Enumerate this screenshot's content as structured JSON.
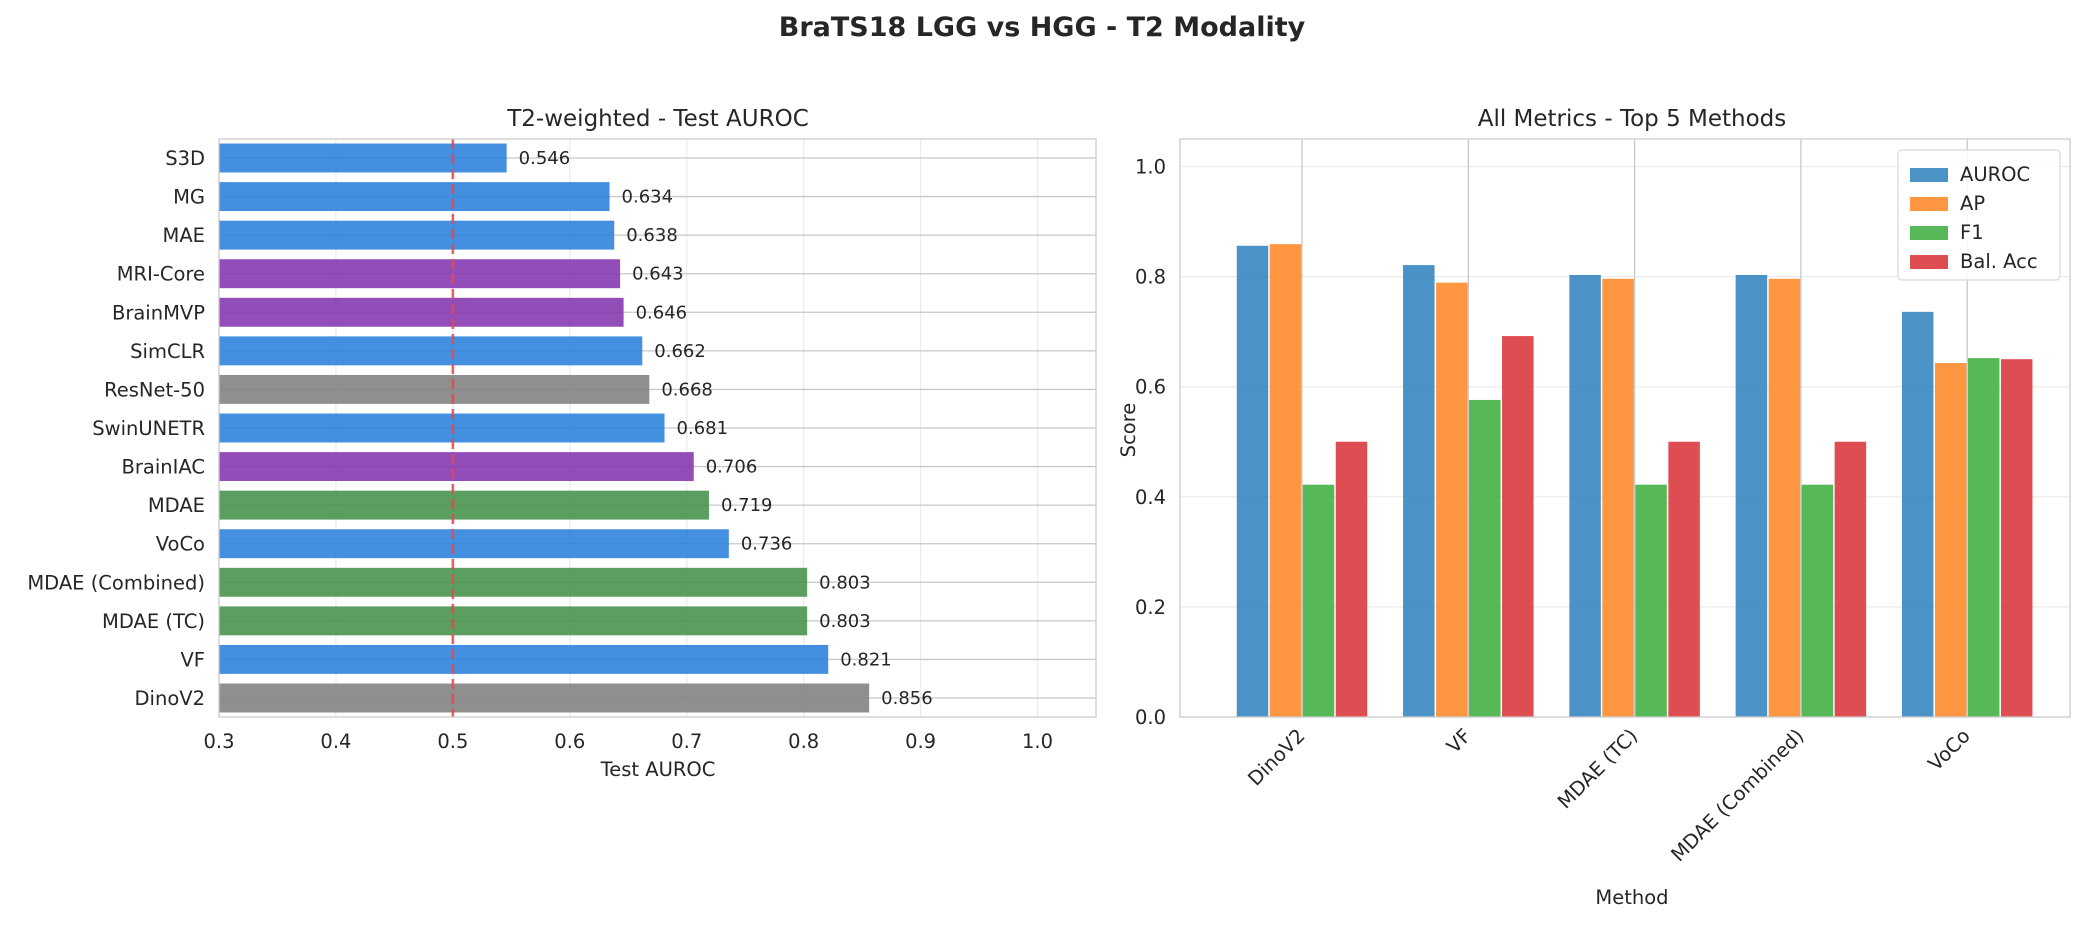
{
  "suptitle": "BraTS18 LGG vs HGG - T2 Modality",
  "chart_data": [
    {
      "type": "bar",
      "orientation": "horizontal",
      "title": "T2-weighted - Test AUROC",
      "xlabel": "Test AUROC",
      "ylabel": "",
      "xlim": [
        0.3,
        1.05
      ],
      "xticks": [
        "0.3",
        "0.4",
        "0.5",
        "0.6",
        "0.7",
        "0.8",
        "0.9",
        "1.0"
      ],
      "grid": true,
      "reference_line": {
        "x": 0.5,
        "color": "#e8474c",
        "style": "dashed"
      },
      "categories": [
        "DinoV2",
        "VF",
        "MDAE (TC)",
        "MDAE (Combined)",
        "VoCo",
        "MDAE",
        "BrainIAC",
        "SwinUNETR",
        "ResNet-50",
        "SimCLR",
        "BrainMVP",
        "MRI-Core",
        "MAE",
        "MG",
        "S3D"
      ],
      "values": [
        0.856,
        0.821,
        0.803,
        0.803,
        0.736,
        0.719,
        0.706,
        0.681,
        0.668,
        0.662,
        0.646,
        0.643,
        0.638,
        0.634,
        0.546
      ],
      "value_labels": [
        "0.856",
        "0.821",
        "0.803",
        "0.803",
        "0.736",
        "0.719",
        "0.706",
        "0.681",
        "0.668",
        "0.662",
        "0.646",
        "0.643",
        "0.638",
        "0.634",
        "0.546"
      ],
      "colors": [
        "#808080",
        "#2a7fdb",
        "#46914a",
        "#46914a",
        "#2a7fdb",
        "#46914a",
        "#8434ae",
        "#2a7fdb",
        "#808080",
        "#2a7fdb",
        "#8434ae",
        "#8434ae",
        "#2a7fdb",
        "#2a7fdb",
        "#2a7fdb"
      ]
    },
    {
      "type": "bar",
      "title": "All Metrics - Top 5 Methods",
      "xlabel": "Method",
      "ylabel": "Score",
      "ylim": [
        0,
        1.05
      ],
      "yticks": [
        "0.0",
        "0.2",
        "0.4",
        "0.6",
        "0.8",
        "1.0"
      ],
      "grid": true,
      "legend_position": "top-right",
      "categories": [
        "DinoV2",
        "VF",
        "MDAE (TC)",
        "MDAE (Combined)",
        "VoCo"
      ],
      "series": [
        {
          "name": "AUROC",
          "color": "#3787c0",
          "values": [
            0.856,
            0.821,
            0.803,
            0.803,
            0.736
          ]
        },
        {
          "name": "AP",
          "color": "#ff8c2e",
          "values": [
            0.859,
            0.789,
            0.796,
            0.796,
            0.643
          ]
        },
        {
          "name": "F1",
          "color": "#45b045",
          "values": [
            0.422,
            0.576,
            0.422,
            0.422,
            0.652
          ]
        },
        {
          "name": "Bal. Acc",
          "color": "#d93a3f",
          "values": [
            0.5,
            0.692,
            0.5,
            0.5,
            0.65
          ]
        }
      ]
    }
  ]
}
